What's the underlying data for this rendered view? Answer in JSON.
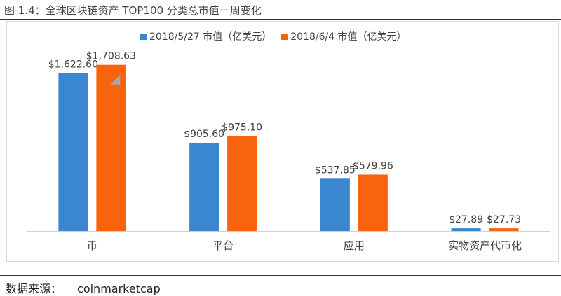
{
  "figure_title": "图 1.4：全球区块链资产 TOP100 分类总市值一周变化",
  "source_label": "数据来源：",
  "source_value": "coinmarketcap",
  "colors": {
    "series1": "#3b86d0",
    "series2": "#f7640d",
    "axis": "#d0d0d0",
    "marker": "#a6a6a6"
  },
  "chart_data": {
    "type": "bar",
    "title": "",
    "xlabel": "",
    "ylabel": "",
    "ylim": [
      0,
      1800
    ],
    "grid": false,
    "legend_position": "top",
    "categories": [
      "币",
      "平台",
      "应用",
      "实物资产代币化"
    ],
    "series": [
      {
        "name": "2018/5/27 市值（亿美元）",
        "values": [
          1622.6,
          905.6,
          537.85,
          27.89
        ],
        "labels": [
          "$1,622.60",
          "$905.60",
          "$537.85",
          "$27.89"
        ]
      },
      {
        "name": "2018/6/4 市值（亿美元）",
        "values": [
          1708.63,
          975.1,
          579.96,
          27.73
        ],
        "labels": [
          "$1,708.63",
          "$975.10",
          "$579.96",
          "$27.73"
        ]
      }
    ]
  }
}
